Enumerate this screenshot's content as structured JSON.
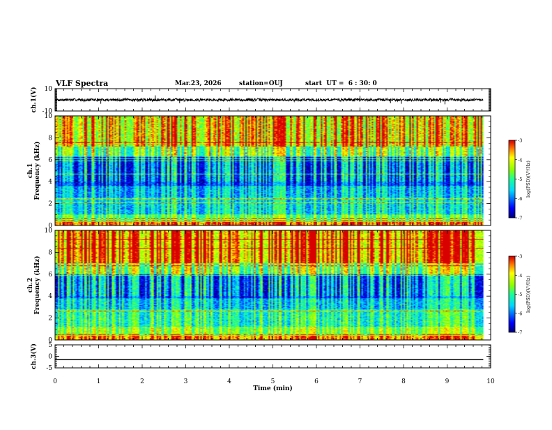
{
  "header": {
    "title": "VLF Spectra",
    "date": "Mar.23, 2026",
    "station": "station=OUJ",
    "start_ut": "start  UT =  6 : 30: 0"
  },
  "chart_data": [
    {
      "type": "line",
      "name": "ch1-waveform",
      "ylabel": "ch.1(V)",
      "ylim": [
        -10,
        10
      ],
      "yticks": [
        10,
        -10
      ],
      "ytick_labels": [
        "10",
        "-10"
      ],
      "baseline": 0,
      "noise_amplitude": 1.5,
      "spikes": [
        {
          "t": 1.05,
          "v": -3.5
        },
        {
          "t": 2.3,
          "v": 4
        },
        {
          "t": 2.86,
          "v": -3
        },
        {
          "t": 7.0,
          "v": 3.5
        },
        {
          "t": 7.7,
          "v": -3
        },
        {
          "t": 7.95,
          "v": -3.5
        },
        {
          "t": 8.85,
          "v": -2.5
        },
        {
          "t": 8.95,
          "v": -4
        }
      ]
    },
    {
      "type": "heatmap",
      "name": "ch1-spectrogram",
      "ylabel": "ch.1\nFrequency (kHz)",
      "ylabel_lines": [
        "ch.1",
        "Frequency (kHz)"
      ],
      "ylim": [
        0,
        10
      ],
      "yticks": [
        0,
        2,
        4,
        6,
        8,
        10
      ],
      "ytick_labels": [
        "0",
        "2",
        "4",
        "6",
        "8",
        "10"
      ],
      "colorbar": {
        "range": [
          -7,
          -3
        ],
        "ticks": [
          "-3",
          "-4",
          "-5",
          "-6",
          "-7"
        ],
        "label": "log(PSD)(V²/Hz)"
      },
      "bands": [
        {
          "f0": 0.0,
          "f1": 0.3,
          "level": -3.8
        },
        {
          "f0": 0.3,
          "f1": 1.0,
          "level": -5.2
        },
        {
          "f0": 1.0,
          "f1": 2.6,
          "level": -5.9
        },
        {
          "f0": 2.6,
          "f1": 3.6,
          "level": -6.1
        },
        {
          "f0": 3.6,
          "f1": 6.3,
          "level": -6.7
        },
        {
          "f0": 6.3,
          "f1": 7.2,
          "level": -5.4
        },
        {
          "f0": 7.2,
          "f1": 10.0,
          "level": -4.6
        }
      ],
      "tones_khz": [
        0.4,
        0.6,
        2.1,
        2.4,
        4.7,
        5.9,
        6.1,
        7.6
      ],
      "sferic_density_per_min": 28,
      "seed": 11
    },
    {
      "type": "heatmap",
      "name": "ch2-spectrogram",
      "ylabel": "ch.2\nFrequency (kHz)",
      "ylabel_lines": [
        "ch.2",
        "Frequency (kHz)"
      ],
      "ylim": [
        0,
        10
      ],
      "yticks": [
        0,
        2,
        4,
        6,
        8,
        10
      ],
      "ytick_labels": [
        "0",
        "2",
        "4",
        "6",
        "8",
        "10"
      ],
      "colorbar": {
        "range": [
          -7,
          -3
        ],
        "ticks": [
          "-3",
          "-4",
          "-5",
          "-6",
          "-7"
        ],
        "label": "log(PSD)(V²/Hz)"
      },
      "bands": [
        {
          "f0": 0.0,
          "f1": 0.4,
          "level": -4.0
        },
        {
          "f0": 0.4,
          "f1": 1.2,
          "level": -5.0
        },
        {
          "f0": 1.2,
          "f1": 2.8,
          "level": -5.6
        },
        {
          "f0": 2.8,
          "f1": 3.8,
          "level": -6.0
        },
        {
          "f0": 3.8,
          "f1": 6.0,
          "level": -6.6
        },
        {
          "f0": 6.0,
          "f1": 7.0,
          "level": -5.3
        },
        {
          "f0": 7.0,
          "f1": 10.0,
          "level": -4.3
        }
      ],
      "tones_khz": [
        0.5,
        2.6,
        5.9,
        6.8,
        8.4,
        9.2
      ],
      "sferic_density_per_min": 30,
      "seed": 29
    },
    {
      "type": "line",
      "name": "ch3-waveform",
      "ylabel": "ch.3(V)",
      "ylim": [
        -5,
        5
      ],
      "yticks": [
        5,
        0,
        -5
      ],
      "ytick_labels": [
        "5",
        "0",
        "-5"
      ],
      "baseline": -1.4,
      "noise_amplitude": 0,
      "spikes": []
    }
  ],
  "time_axis": {
    "xlabel": "Time  (min)",
    "xlim": [
      0,
      10
    ],
    "xticks": [
      0,
      1,
      2,
      3,
      4,
      5,
      6,
      7,
      8,
      9,
      10
    ],
    "xtick_labels": [
      "0",
      "1",
      "2",
      "3",
      "4",
      "5",
      "6",
      "7",
      "8",
      "9",
      "10"
    ],
    "data_end": 9.83
  },
  "colors": {
    "axis": "#000000",
    "background": "#ffffff"
  }
}
